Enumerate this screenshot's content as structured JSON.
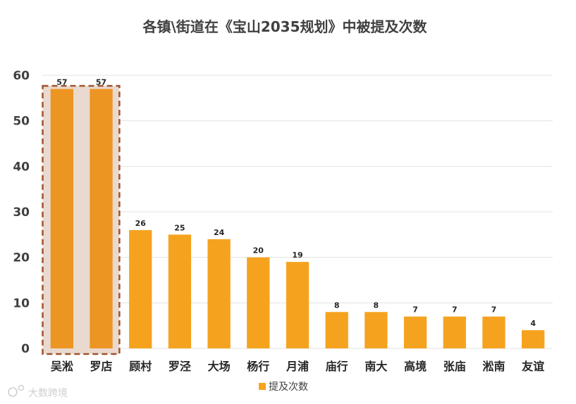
{
  "chart_data": {
    "type": "bar",
    "title": "各镇\\街道在《宝山2035规划》中被提及次数",
    "categories": [
      "吴淞",
      "罗店",
      "顾村",
      "罗泾",
      "大场",
      "杨行",
      "月浦",
      "庙行",
      "南大",
      "高境",
      "张庙",
      "淞南",
      "友谊"
    ],
    "series": [
      {
        "name": "提及次数",
        "values": [
          57,
          57,
          26,
          25,
          24,
          20,
          19,
          8,
          8,
          7,
          7,
          7,
          4
        ]
      }
    ],
    "ylim": [
      0,
      60
    ],
    "yticks": [
      0,
      10,
      20,
      30,
      40,
      50,
      60
    ],
    "grid": true,
    "legend": "bottom",
    "highlight": {
      "categories": [
        "吴淞",
        "罗店"
      ],
      "style": "dashed-box"
    },
    "colors": {
      "bar": "#F5A31F",
      "bar_highlight": "#EC9522",
      "highlight_fill": "#EAD9CF",
      "highlight_border": "#A0522D",
      "grid": "#E3E3E3"
    }
  },
  "watermark": {
    "text": "大数跨境",
    "icon": "watermark-logo-icon"
  }
}
